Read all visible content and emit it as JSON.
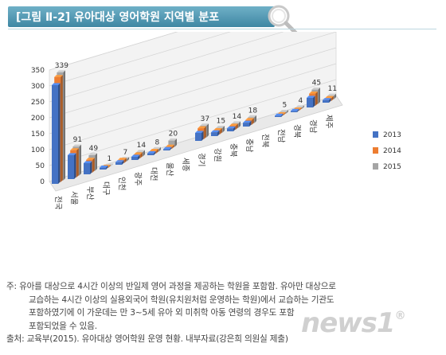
{
  "header": {
    "title": "[그림 Ⅱ-2] 유아대상 영어학원 지역별 분포"
  },
  "chart_data": {
    "type": "bar",
    "style": "3d-clustered-column",
    "categories": [
      "전국",
      "서울",
      "부산",
      "대구",
      "인천",
      "광주",
      "대전",
      "울산",
      "세종",
      "경기",
      "강원",
      "충북",
      "충남",
      "전북",
      "전남",
      "경북",
      "경남",
      "제주"
    ],
    "series": [
      {
        "name": "2013",
        "color": "#4472c4",
        "values": [
          310,
          75,
          35,
          6,
          8,
          10,
          6,
          4,
          0,
          25,
          12,
          9,
          12,
          0,
          4,
          4,
          30,
          8
        ]
      },
      {
        "name": "2014",
        "color": "#ed7d31",
        "values": [
          330,
          85,
          40,
          3,
          10,
          12,
          8,
          6,
          0,
          34,
          13,
          12,
          15,
          0,
          3,
          3,
          38,
          9
        ]
      },
      {
        "name": "2015",
        "color": "#a5a5a5",
        "values": [
          339,
          91,
          49,
          1,
          7,
          14,
          8,
          20,
          0,
          37,
          15,
          14,
          18,
          0,
          5,
          4,
          45,
          11
        ]
      }
    ],
    "data_labels": [
      "339",
      "91",
      "49",
      "1",
      "7",
      "14",
      "8",
      "20",
      "37",
      "15",
      "14",
      "18",
      "5",
      "4",
      "45",
      "11"
    ],
    "ylim": [
      0,
      350
    ],
    "yticks": [
      "0",
      "50",
      "100",
      "150",
      "200",
      "250",
      "300",
      "350"
    ],
    "legend": "right",
    "grid": true
  },
  "notes": {
    "line1": "주: 유아를 대상으로 4시간 이상의 반일제 영어 과정을 제공하는 학원을 포함함. 유아만 대상으로",
    "line2": "교습하는 4시간 이상의 실용외국어 학원(유치원처럼 운영하는 학원)에서 교습하는 기관도",
    "line3": "포함하였기에 이 가운데는 만 3~5세 유아 외 미취학 아동 연령의 경우도 포함",
    "line4": "포함되었을 수 있음.",
    "source": "출처: 교육부(2015). 유아대상 영어학원 운영 현황. 내부자료(강은희 의원실 제출)"
  },
  "watermark": {
    "text": "news1",
    "mark": "®"
  }
}
